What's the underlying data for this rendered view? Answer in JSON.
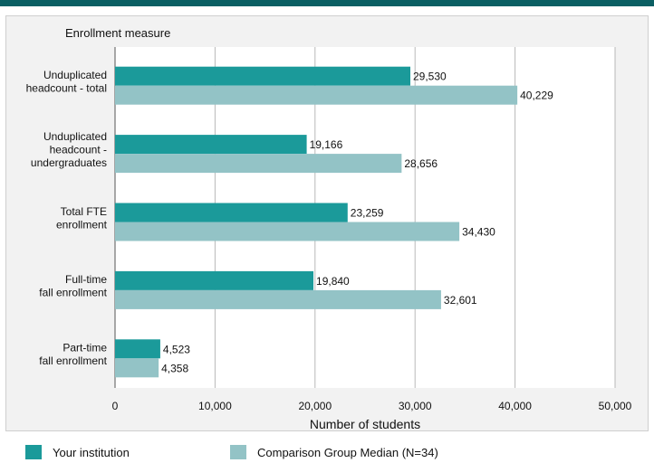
{
  "chart_data": {
    "type": "bar",
    "orientation": "horizontal",
    "title": "",
    "category_axis_title": "Enrollment measure",
    "xlabel": "Number of students",
    "xlim": [
      0,
      50000
    ],
    "xticks": [
      0,
      10000,
      20000,
      30000,
      40000,
      50000
    ],
    "xtick_labels": [
      "0",
      "10,000",
      "20,000",
      "30,000",
      "40,000",
      "50,000"
    ],
    "grid": true,
    "legend_position": "bottom",
    "categories": [
      [
        "Unduplicated",
        "headcount - total"
      ],
      [
        "Unduplicated",
        "headcount -",
        "undergraduates"
      ],
      [
        "Total FTE",
        "enrollment"
      ],
      [
        "Full-time",
        "fall enrollment"
      ],
      [
        "Part-time",
        "fall enrollment"
      ]
    ],
    "series": [
      {
        "name": "Your institution",
        "color": "#1b9a9a",
        "values": [
          29530,
          19166,
          23259,
          19840,
          4523
        ],
        "labels": [
          "29,530",
          "19,166",
          "23,259",
          "19,840",
          "4,523"
        ]
      },
      {
        "name": "Comparison Group Median (N=34)",
        "color": "#93c3c6",
        "values": [
          40229,
          28656,
          34430,
          32601,
          4358
        ],
        "labels": [
          "40,229",
          "28,656",
          "34,430",
          "32,601",
          "4,358"
        ]
      }
    ]
  }
}
